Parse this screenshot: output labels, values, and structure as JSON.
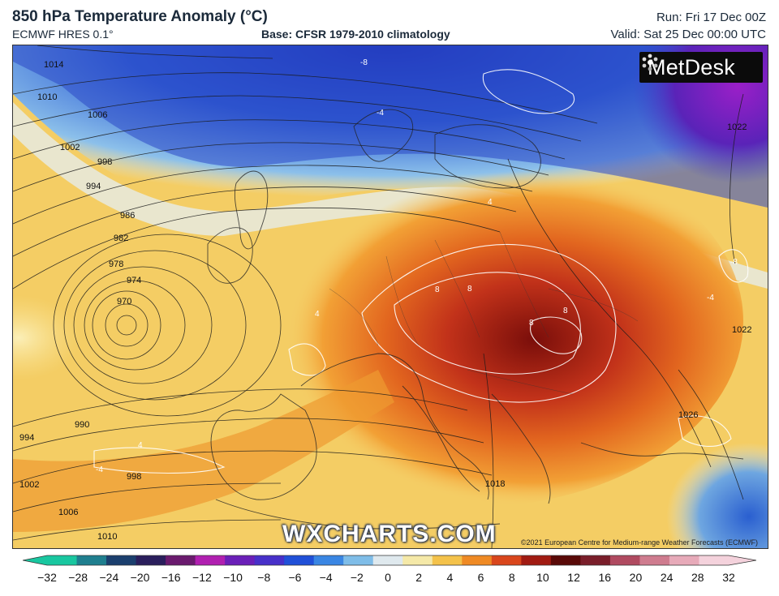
{
  "header": {
    "title": "850 hPa Temperature Anomaly (°C)",
    "model": "ECMWF HRES 0.1°",
    "base": "Base: CFSR 1979-2010 climatology",
    "run": "Run: Fri 17 Dec 00Z",
    "valid": "Valid: Sat 25 Dec 00:00 UTC"
  },
  "branding": {
    "logo_text": "MetDesk",
    "watermark": "WXCHARTS.COM",
    "copyright": "©2021 European Centre for Medium-range Weather Forecasts (ECMWF)"
  },
  "isobars": {
    "labels": [
      "1014",
      "1010",
      "1006",
      "1002",
      "998",
      "994",
      "986",
      "982",
      "978",
      "974",
      "970",
      "990",
      "994",
      "998",
      "1002",
      "1006",
      "1010",
      "1018",
      "1022",
      "1022",
      "1026"
    ]
  },
  "anomaly_labels": [
    "-8",
    "-4",
    "4",
    "8",
    "8",
    "8",
    "8",
    "4",
    "-4",
    "-8",
    "4",
    "-4"
  ],
  "colorbar": {
    "ticks": [
      "-32",
      "-28",
      "-24",
      "-20",
      "-16",
      "-12",
      "-10",
      "-8",
      "-6",
      "-4",
      "-2",
      "0",
      "2",
      "4",
      "6",
      "8",
      "10",
      "12",
      "16",
      "20",
      "24",
      "28",
      "32"
    ],
    "colors": [
      "#19c7a0",
      "#1f7f8f",
      "#1b3f6e",
      "#2a1e5c",
      "#6a1a6e",
      "#b01fb0",
      "#6a1fb8",
      "#4730c9",
      "#2050d8",
      "#3a86e3",
      "#7fbde8",
      "#dfe9ee",
      "#f5e9a8",
      "#f4c24a",
      "#ef8a24",
      "#d9461c",
      "#a11b12",
      "#5a0a08",
      "#7a1e2a",
      "#b04a60",
      "#cf7c8f",
      "#e7aab9",
      "#f4d2dc"
    ]
  }
}
